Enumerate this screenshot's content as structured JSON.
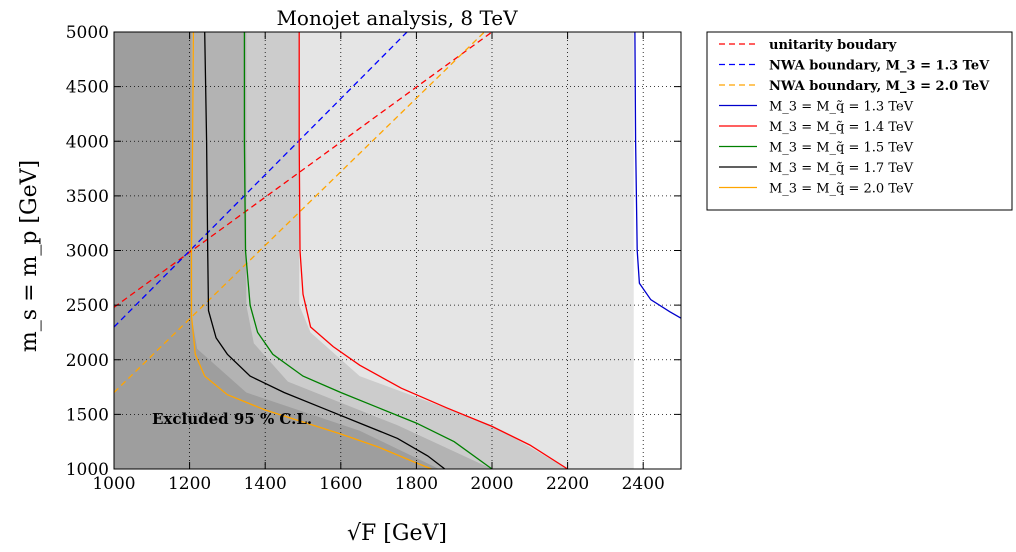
{
  "chart_data": {
    "type": "line",
    "title": "Monojet analysis, 8 TeV",
    "xlabel": "√F [GeV]",
    "ylabel": "m_s = m_p [GeV]",
    "xlim": [
      1000,
      2500
    ],
    "ylim": [
      1000,
      5000
    ],
    "xticks": [
      "1000",
      "1200",
      "1400",
      "1600",
      "1800",
      "2000",
      "2200",
      "2400"
    ],
    "yticks": [
      "1000",
      "1500",
      "2000",
      "2500",
      "3000",
      "3500",
      "4000",
      "4500",
      "5000"
    ],
    "grid": true,
    "legend_position": "outside-right",
    "annotation": "Excluded 95 % C.L.",
    "regions": [
      {
        "fill": "#e5e5e5",
        "boundary_x": [
          [
            2375,
            1000
          ],
          [
            2375,
            5000
          ]
        ],
        "extend": "left"
      },
      {
        "fill": "#cccccc",
        "boundary_x": [
          [
            1490,
            5000
          ],
          [
            1490,
            2500
          ],
          [
            1520,
            2250
          ],
          [
            1650,
            1850
          ],
          [
            2000,
            1400
          ],
          [
            2200,
            1000
          ]
        ],
        "extend": "left"
      },
      {
        "fill": "#b3b3b3",
        "boundary_x": [
          [
            1350,
            5000
          ],
          [
            1350,
            2500
          ],
          [
            1370,
            2150
          ],
          [
            1460,
            1800
          ],
          [
            1750,
            1400
          ],
          [
            2000,
            1000
          ]
        ],
        "extend": "left"
      },
      {
        "fill": "#9e9e9e",
        "boundary_x": [
          [
            1205,
            5000
          ],
          [
            1205,
            2400
          ],
          [
            1220,
            2100
          ],
          [
            1350,
            1700
          ],
          [
            1650,
            1350
          ],
          [
            1860,
            1000
          ]
        ],
        "extend": "left"
      }
    ],
    "series": [
      {
        "name": "unitarity boudary",
        "color": "#ff0000",
        "dash": "6,4",
        "x": [
          1000,
          2000
        ],
        "y": [
          2480,
          5000
        ]
      },
      {
        "name": "NWA boundary, M_3 = 1.3 TeV",
        "color": "#0000ff",
        "dash": "6,4",
        "x": [
          1000,
          1775
        ],
        "y": [
          2300,
          5000
        ]
      },
      {
        "name": "NWA boundary, M_3 = 2.0 TeV",
        "color": "#ffa500",
        "dash": "6,4",
        "x": [
          1000,
          1980
        ],
        "y": [
          1700,
          5000
        ]
      },
      {
        "name": "M_3 = M_q̃ = 1.3 TeV",
        "color": "#0000cc",
        "dash": "",
        "x": [
          2378,
          2380,
          2382,
          2384,
          2390,
          2420,
          2470,
          2500
        ],
        "y": [
          5000,
          4000,
          3500,
          3000,
          2700,
          2550,
          2440,
          2380
        ]
      },
      {
        "name": "M_3 = M_q̃ = 1.4 TeV",
        "color": "#ff0000",
        "dash": "",
        "x": [
          1490,
          1490,
          1492,
          1500,
          1520,
          1580,
          1650,
          1760,
          1880,
          2000,
          2100,
          2200
        ],
        "y": [
          5000,
          4000,
          3000,
          2600,
          2300,
          2120,
          1950,
          1740,
          1560,
          1390,
          1220,
          1000
        ]
      },
      {
        "name": "M_3 = M_q̃ = 1.5 TeV",
        "color": "#008000",
        "dash": "",
        "x": [
          1345,
          1345,
          1348,
          1360,
          1380,
          1420,
          1500,
          1600,
          1700,
          1800,
          1900,
          2000
        ],
        "y": [
          5000,
          4000,
          3000,
          2500,
          2250,
          2050,
          1850,
          1700,
          1560,
          1420,
          1250,
          1000
        ]
      },
      {
        "name": "M_3 = M_q̃ = 1.7 TeV",
        "color": "#000000",
        "dash": "",
        "x": [
          1240,
          1245,
          1248,
          1250,
          1270,
          1300,
          1360,
          1450,
          1550,
          1650,
          1750,
          1830,
          1875
        ],
        "y": [
          5000,
          4000,
          3000,
          2450,
          2200,
          2050,
          1850,
          1700,
          1560,
          1420,
          1280,
          1120,
          1000
        ]
      },
      {
        "name": "M_3 = M_q̃ = 2.0 TeV",
        "color": "#ffa500",
        "dash": "",
        "x": [
          1210,
          1208,
          1205,
          1205,
          1215,
          1240,
          1300,
          1400,
          1500,
          1600,
          1700,
          1790,
          1840
        ],
        "y": [
          5000,
          4000,
          3000,
          2400,
          2050,
          1850,
          1680,
          1540,
          1430,
          1320,
          1200,
          1070,
          1000
        ]
      }
    ]
  }
}
